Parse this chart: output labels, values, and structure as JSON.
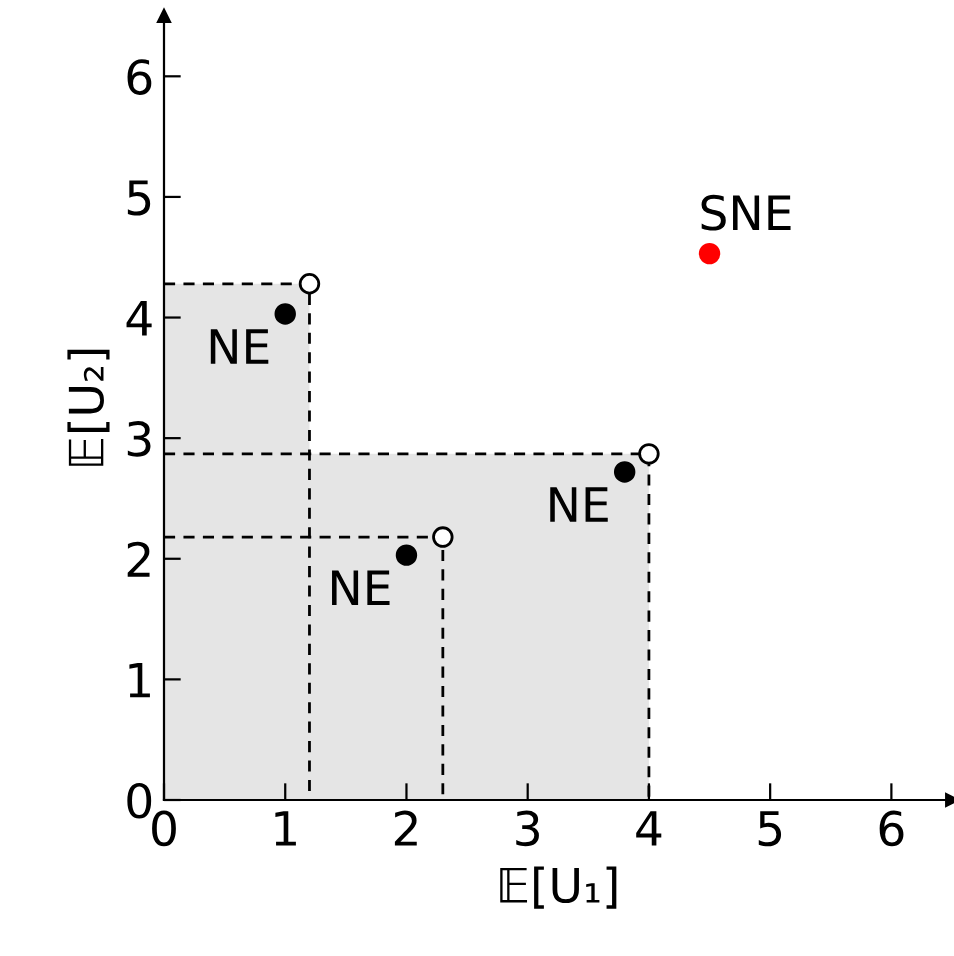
{
  "chart_data": {
    "type": "scatter",
    "xlabel": "𝔼[U₁]",
    "ylabel": "𝔼[U₂]",
    "xlim": [
      0,
      6.5
    ],
    "ylim": [
      0,
      6.5
    ],
    "xticks": [
      0,
      1,
      2,
      3,
      4,
      5,
      6
    ],
    "yticks": [
      0,
      1,
      2,
      3,
      4,
      5,
      6
    ],
    "grid": false,
    "legend": false,
    "marker": "circle",
    "series": [
      {
        "type": "area",
        "marker": "none",
        "color": "#e5e5e5",
        "x": [
          0,
          1.2,
          1.2,
          4.0,
          4.0
        ],
        "values": [
          4.28,
          4.28,
          2.87,
          2.87,
          0
        ]
      },
      {
        "type": "line",
        "line_style": "dashed",
        "marker": "none",
        "color": "#000000",
        "x": [
          0,
          1.2,
          1.2
        ],
        "values": [
          4.28,
          4.28,
          0
        ]
      },
      {
        "type": "line",
        "line_style": "dashed",
        "marker": "none",
        "color": "#000000",
        "x": [
          0,
          4.0,
          4.0
        ],
        "values": [
          2.87,
          2.87,
          0
        ]
      },
      {
        "type": "line",
        "line_style": "dashed",
        "marker": "none",
        "color": "#000000",
        "x": [
          0,
          2.3,
          2.3
        ],
        "values": [
          2.18,
          2.18,
          0
        ]
      },
      {
        "color": "#000000",
        "x": [
          1.0,
          2.0,
          3.8
        ],
        "values": [
          4.03,
          2.03,
          2.72
        ]
      },
      {
        "color": "#ffffff",
        "x": [
          1.2,
          2.3,
          4.0
        ],
        "values": [
          4.28,
          2.18,
          2.87
        ]
      },
      {
        "color": "#ff0000",
        "x": [
          4.5
        ],
        "values": [
          4.53
        ]
      }
    ],
    "annotations": [
      {
        "text": "NE",
        "x": 1.0,
        "y": 4.03
      },
      {
        "text": "NE",
        "x": 2.0,
        "y": 2.03
      },
      {
        "text": "NE",
        "x": 3.8,
        "y": 2.72
      },
      {
        "text": "SNE",
        "x": 4.5,
        "y": 4.53
      }
    ]
  }
}
